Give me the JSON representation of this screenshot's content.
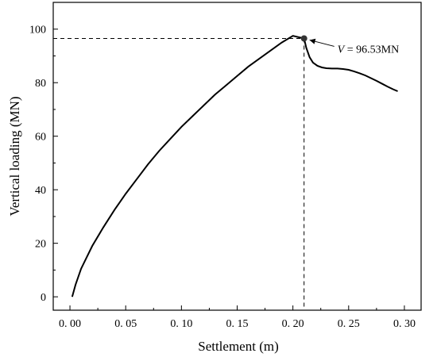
{
  "chart_data": {
    "type": "line",
    "title": "",
    "xlabel": "Settlement (m)",
    "ylabel": "Vertical loading (MN)",
    "xlim": [
      -0.015,
      0.315
    ],
    "ylim": [
      -5,
      110
    ],
    "x_ticks": [
      0.0,
      0.05,
      0.1,
      0.15,
      0.2,
      0.25,
      0.3
    ],
    "x_tick_labels": [
      "0. 00",
      "0. 05",
      "0. 10",
      "0. 15",
      "0. 20",
      "0. 25",
      "0. 30"
    ],
    "y_ticks": [
      0,
      20,
      40,
      60,
      80,
      100
    ],
    "y_tick_labels": [
      "0",
      "20",
      "40",
      "60",
      "80",
      "100"
    ],
    "grid": false,
    "series": [
      {
        "color": "#000000",
        "x": [
          0.002,
          0.005,
          0.01,
          0.02,
          0.03,
          0.04,
          0.05,
          0.06,
          0.07,
          0.08,
          0.09,
          0.1,
          0.11,
          0.12,
          0.13,
          0.14,
          0.15,
          0.16,
          0.17,
          0.18,
          0.19,
          0.2,
          0.21,
          0.212,
          0.215,
          0.218,
          0.222,
          0.226,
          0.23,
          0.235,
          0.24,
          0.245,
          0.25,
          0.255,
          0.26,
          0.265,
          0.27,
          0.275,
          0.28,
          0.285,
          0.29,
          0.294
        ],
        "y": [
          0,
          4.5,
          10.5,
          19.0,
          26.0,
          32.5,
          38.5,
          44.0,
          49.5,
          54.5,
          59.0,
          63.5,
          67.5,
          71.5,
          75.5,
          79.0,
          82.5,
          86.0,
          89.0,
          92.0,
          95.0,
          97.5,
          96.53,
          93.0,
          89.5,
          87.5,
          86.3,
          85.7,
          85.4,
          85.3,
          85.3,
          85.1,
          84.8,
          84.2,
          83.5,
          82.7,
          81.7,
          80.7,
          79.6,
          78.5,
          77.5,
          76.8
        ]
      }
    ],
    "peak": {
      "x": 0.21,
      "y": 96.53,
      "label_var": "V",
      "label_text": " = 96.53MN"
    }
  }
}
